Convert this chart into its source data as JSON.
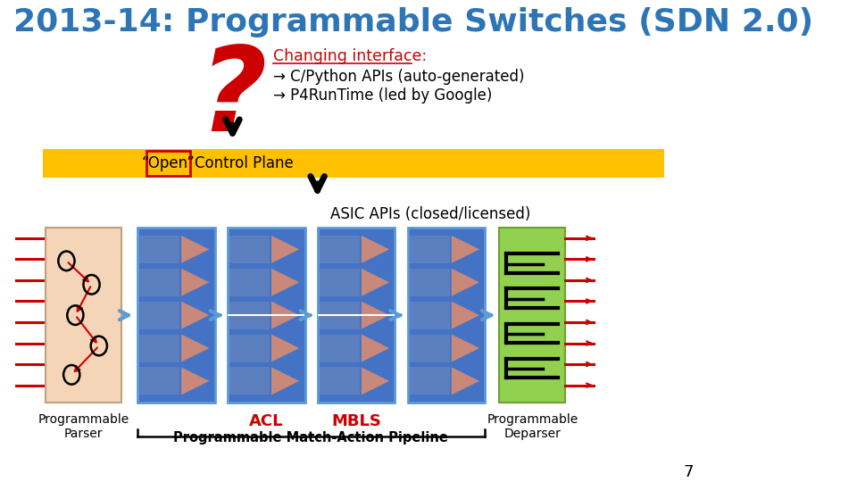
{
  "title": "2013-14: Programmable Switches (SDN 2.0)",
  "title_color": "#2E75B6",
  "bg_color": "#FFFFFF",
  "changing_interface_label": "Changing interface:",
  "bullet1": "→ C/Python APIs (auto-generated)",
  "bullet2": "→ P4RunTime (led by Google)",
  "open_control_plane": "“Open” Control Plane",
  "asic_label": "ASIC APIs (closed/licensed)",
  "parser_label": "Programmable\nParser",
  "acl_label": "ACL",
  "mbls_label": "MBLS",
  "pipeline_label": "Programmable Match-Action Pipeline",
  "deparser_label": "Programmable\nDeparser",
  "page_number": "7",
  "red_color": "#CC0000",
  "blue_color": "#4472C4",
  "blue_arrow_color": "#5B9BD5",
  "salmon_color": "#C9897A",
  "green_color": "#92D050",
  "orange_bg": "#FFC000",
  "parser_bg": "#F5D5B8",
  "dark_blue_row": "#4472C4",
  "mid_blue_row": "#6888BB",
  "border_blue": "#5B9BD5"
}
